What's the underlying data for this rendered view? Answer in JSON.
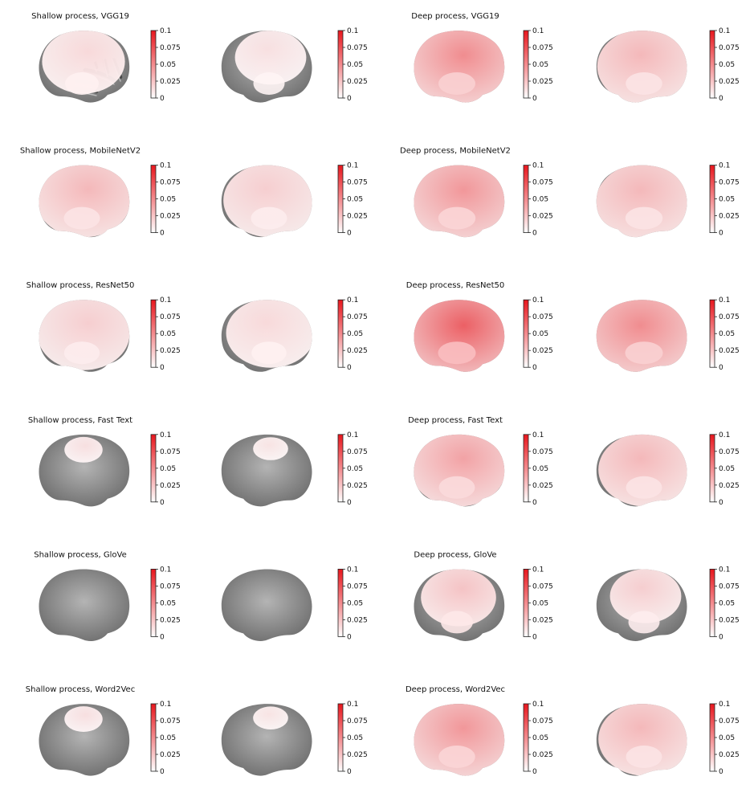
{
  "figure": {
    "colorbar": {
      "tick_labels": [
        "0.1",
        "0.075",
        "0.05",
        "0.025",
        "0"
      ],
      "range": [
        0,
        0.1
      ],
      "color_low": "#ffffff",
      "color_high": "#e8161d"
    },
    "colors": {
      "background": "#ffffff",
      "brain_base": "#8e8e8e",
      "brain_sulci": "#3e3e3e",
      "brain_gyri": "#d8d8d8",
      "overlay": "#ff9a9a",
      "overlay_peak": "#ff1f1f",
      "text": "#111111"
    },
    "rows": [
      {
        "shallow_title": "Shallow process, VGG19",
        "deep_title": "Deep process, VGG19",
        "shallow": {
          "left": 0.015,
          "right": 0.012
        },
        "deep": {
          "left": 0.05,
          "right": 0.03
        },
        "shallow_cov": {
          "left": 0.7,
          "right": 0.55
        },
        "deep_cov": {
          "left": 0.9,
          "right": 0.88
        }
      },
      {
        "shallow_title": "Shallow process, MobileNetV2",
        "deep_title": "Deep process, MobileNetV2",
        "shallow": {
          "left": 0.03,
          "right": 0.02
        },
        "deep": {
          "left": 0.045,
          "right": 0.03
        },
        "shallow_cov": {
          "left": 0.85,
          "right": 0.85
        },
        "deep_cov": {
          "left": 0.92,
          "right": 0.92
        }
      },
      {
        "shallow_title": "Shallow process, ResNet50",
        "deep_title": "Deep process, ResNet50",
        "shallow": {
          "left": 0.02,
          "right": 0.015
        },
        "deep": {
          "left": 0.07,
          "right": 0.05
        },
        "shallow_cov": {
          "left": 0.82,
          "right": 0.78
        },
        "deep_cov": {
          "left": 0.95,
          "right": 0.95
        }
      },
      {
        "shallow_title": "Shallow process, Fast Text",
        "deep_title": "Deep process, Fast Text",
        "shallow": {
          "left": 0.012,
          "right": 0.01
        },
        "deep": {
          "left": 0.04,
          "right": 0.03
        },
        "shallow_cov": {
          "left": 0.12,
          "right": 0.08
        },
        "deep_cov": {
          "left": 0.85,
          "right": 0.85
        }
      },
      {
        "shallow_title": "Shallow process, GloVe",
        "deep_title": "Deep process, GloVe",
        "shallow": {
          "left": 0,
          "right": 0
        },
        "deep": {
          "left": 0.025,
          "right": 0.02
        },
        "shallow_cov": {
          "left": 0,
          "right": 0
        },
        "deep_cov": {
          "left": 0.6,
          "right": 0.55
        }
      },
      {
        "shallow_title": "Shallow process, Word2Vec",
        "deep_title": "Deep process, Word2Vec",
        "shallow": {
          "left": 0.012,
          "right": 0.01
        },
        "deep": {
          "left": 0.045,
          "right": 0.03
        },
        "shallow_cov": {
          "left": 0.12,
          "right": 0.08
        },
        "deep_cov": {
          "left": 0.88,
          "right": 0.85
        }
      }
    ]
  }
}
